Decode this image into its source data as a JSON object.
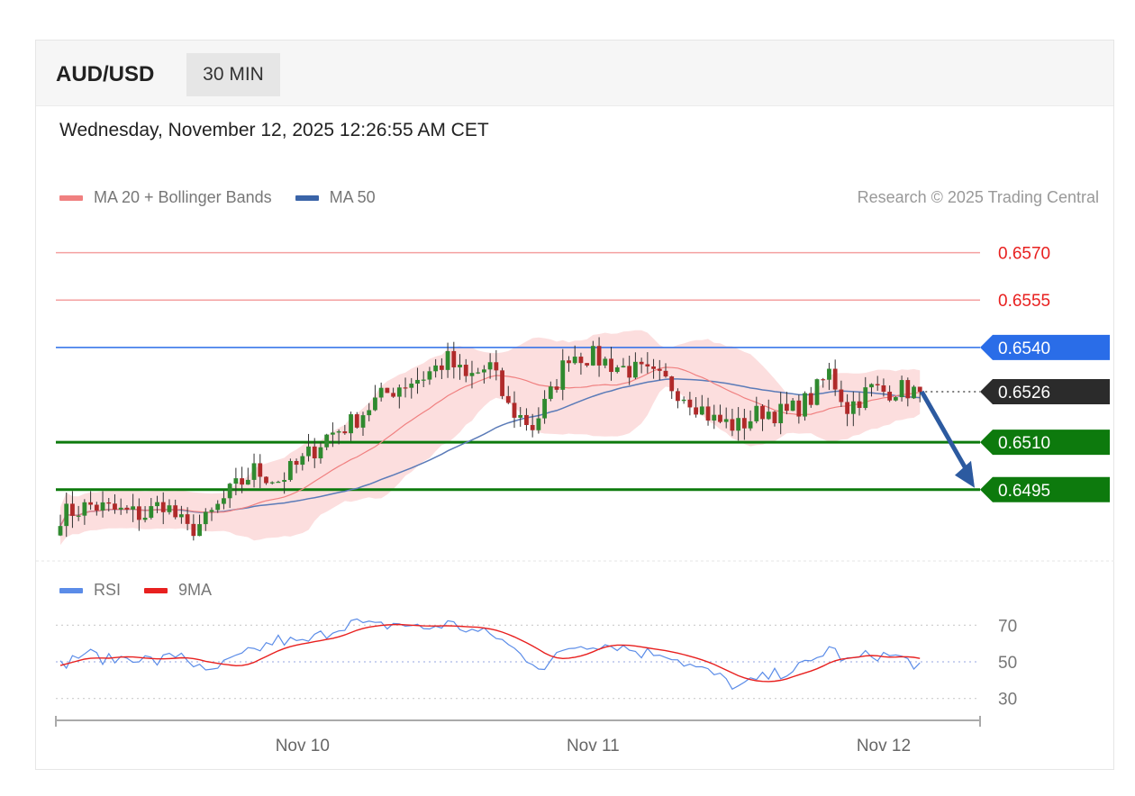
{
  "header": {
    "pair": "AUD/USD",
    "timeframe": "30 MIN"
  },
  "datetime": "Wednesday, November 12, 2025 12:26:55 AM CET",
  "legend": {
    "ma20_label": "MA 20 + Bollinger Bands",
    "ma50_label": "MA 50",
    "rsi_label": "RSI",
    "rsi_ma_label": "9MA",
    "credit": "Research © 2025 Trading Central"
  },
  "colors": {
    "resistance": "#f4a0a0",
    "resistance_text": "#e8201f",
    "pivot": "#2a6de8",
    "support": "#0d7a0d",
    "current": "#2b2b2b",
    "arrow": "#2c5aa0",
    "bollinger": "#fbd6d6",
    "ma20": "#f08080",
    "ma50": "#5b7bb8",
    "up_candle": "#2f8a2f",
    "down_candle": "#b02a2a",
    "rsi": "#5b8ce8",
    "rsi_ma": "#e8201f"
  },
  "chart_data": {
    "type": "candlestick",
    "ylim": [
      0.6473,
      0.6579
    ],
    "levels": [
      {
        "kind": "resistance",
        "value": 0.657,
        "label": "0.6570"
      },
      {
        "kind": "resistance",
        "value": 0.6555,
        "label": "0.6555"
      },
      {
        "kind": "pivot",
        "value": 0.654,
        "label": "0.6540"
      },
      {
        "kind": "current",
        "value": 0.6526,
        "label": "0.6526"
      },
      {
        "kind": "support",
        "value": 0.651,
        "label": "0.6510"
      },
      {
        "kind": "support",
        "value": 0.6495,
        "label": "0.6495"
      }
    ],
    "x_ticks": [
      {
        "label": "Nov 10",
        "index": 40
      },
      {
        "label": "Nov 11",
        "index": 88
      },
      {
        "label": "Nov 12",
        "index": 136
      }
    ],
    "keypoints": [
      [
        0,
        0.6487
      ],
      [
        5,
        0.649
      ],
      [
        10,
        0.6488
      ],
      [
        14,
        0.6487
      ],
      [
        17,
        0.6491
      ],
      [
        21,
        0.6482
      ],
      [
        24,
        0.6485
      ],
      [
        28,
        0.6494
      ],
      [
        32,
        0.6501
      ],
      [
        36,
        0.6498
      ],
      [
        40,
        0.6504
      ],
      [
        44,
        0.6512
      ],
      [
        48,
        0.6516
      ],
      [
        52,
        0.6523
      ],
      [
        56,
        0.6528
      ],
      [
        60,
        0.6531
      ],
      [
        64,
        0.6536
      ],
      [
        67,
        0.653
      ],
      [
        71,
        0.6534
      ],
      [
        74,
        0.6521
      ],
      [
        78,
        0.6515
      ],
      [
        81,
        0.6525
      ],
      [
        84,
        0.6538
      ],
      [
        88,
        0.6537
      ],
      [
        92,
        0.6534
      ],
      [
        96,
        0.6532
      ],
      [
        100,
        0.6529
      ],
      [
        104,
        0.6524
      ],
      [
        108,
        0.6517
      ],
      [
        112,
        0.6515
      ],
      [
        116,
        0.652
      ],
      [
        120,
        0.6519
      ],
      [
        124,
        0.6524
      ],
      [
        127,
        0.6532
      ],
      [
        130,
        0.6521
      ],
      [
        134,
        0.6527
      ],
      [
        136,
        0.6526
      ],
      [
        138,
        0.6527
      ],
      [
        142,
        0.6526
      ]
    ],
    "forecast": {
      "from": 0.6526,
      "to": 0.6495
    },
    "rsi": {
      "ylim": [
        20,
        80
      ],
      "ticks": [
        70,
        50,
        30
      ],
      "keypoints": [
        [
          0,
          48
        ],
        [
          4,
          55
        ],
        [
          8,
          51
        ],
        [
          12,
          53
        ],
        [
          16,
          50
        ],
        [
          20,
          55
        ],
        [
          24,
          43
        ],
        [
          28,
          50
        ],
        [
          32,
          56
        ],
        [
          36,
          62
        ],
        [
          40,
          60
        ],
        [
          44,
          66
        ],
        [
          48,
          72
        ],
        [
          52,
          69
        ],
        [
          56,
          71
        ],
        [
          60,
          68
        ],
        [
          64,
          71
        ],
        [
          68,
          67
        ],
        [
          72,
          64
        ],
        [
          76,
          54
        ],
        [
          80,
          47
        ],
        [
          84,
          58
        ],
        [
          88,
          60
        ],
        [
          92,
          59
        ],
        [
          96,
          55
        ],
        [
          100,
          55
        ],
        [
          104,
          48
        ],
        [
          108,
          43
        ],
        [
          112,
          36
        ],
        [
          116,
          41
        ],
        [
          120,
          45
        ],
        [
          124,
          49
        ],
        [
          127,
          58
        ],
        [
          130,
          50
        ],
        [
          134,
          54
        ],
        [
          138,
          53
        ],
        [
          142,
          48
        ]
      ]
    }
  }
}
